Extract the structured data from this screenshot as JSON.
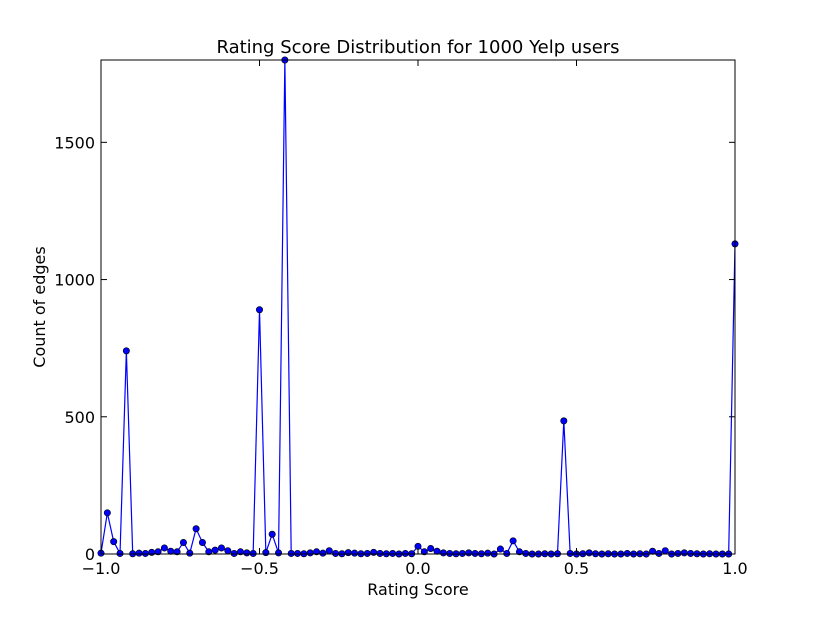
{
  "chart_data": {
    "type": "line",
    "title": "Rating Score Distribution for 1000 Yelp users",
    "xlabel": "Rating Score",
    "ylabel": "Count of edges",
    "xlim": [
      -1.0,
      1.0
    ],
    "ylim": [
      0,
      1800
    ],
    "xticks": [
      -1.0,
      -0.5,
      0.0,
      0.5,
      1.0
    ],
    "xtick_labels": [
      "−1.0",
      "−0.5",
      "0.0",
      "0.5",
      "1.0"
    ],
    "yticks": [
      0,
      500,
      1000,
      1500
    ],
    "ytick_labels": [
      "0",
      "500",
      "1000",
      "1500"
    ],
    "grid": false,
    "legend": null,
    "line_color": "#0000ff",
    "marker_fill": "#0000ff",
    "marker_edge": "#000000",
    "series": [
      {
        "x": [
          -1.0,
          -0.98,
          -0.96,
          -0.94,
          -0.92,
          -0.9,
          -0.88,
          -0.86,
          -0.84,
          -0.82,
          -0.8,
          -0.78,
          -0.76,
          -0.74,
          -0.72,
          -0.7,
          -0.68,
          -0.66,
          -0.64,
          -0.62,
          -0.6,
          -0.58,
          -0.56,
          -0.54,
          -0.52,
          -0.5,
          -0.48,
          -0.46,
          -0.44,
          -0.42,
          -0.4,
          -0.38,
          -0.36,
          -0.34,
          -0.32,
          -0.3,
          -0.28,
          -0.26,
          -0.24,
          -0.22,
          -0.2,
          -0.18,
          -0.16,
          -0.14,
          -0.12,
          -0.1,
          -0.08,
          -0.06,
          -0.04,
          -0.02,
          0.0,
          0.02,
          0.04,
          0.06,
          0.08,
          0.1,
          0.12,
          0.14,
          0.16,
          0.18,
          0.2,
          0.22,
          0.24,
          0.26,
          0.28,
          0.3,
          0.32,
          0.34,
          0.36,
          0.38,
          0.4,
          0.42,
          0.44,
          0.46,
          0.48,
          0.5,
          0.52,
          0.54,
          0.56,
          0.58,
          0.6,
          0.62,
          0.64,
          0.66,
          0.68,
          0.7,
          0.72,
          0.74,
          0.76,
          0.78,
          0.8,
          0.82,
          0.84,
          0.86,
          0.88,
          0.9,
          0.92,
          0.94,
          0.96,
          0.98,
          1.0
        ],
        "y": [
          3,
          150,
          45,
          2,
          740,
          1,
          3,
          2,
          6,
          8,
          22,
          10,
          8,
          42,
          3,
          92,
          42,
          8,
          14,
          22,
          12,
          2,
          8,
          4,
          2,
          890,
          5,
          72,
          4,
          1800,
          2,
          2,
          1,
          4,
          8,
          3,
          12,
          2,
          1,
          5,
          3,
          1,
          2,
          6,
          2,
          1,
          2,
          0,
          2,
          1,
          28,
          8,
          20,
          10,
          4,
          2,
          1,
          2,
          4,
          2,
          1,
          3,
          0,
          18,
          2,
          48,
          8,
          2,
          0,
          0,
          1,
          0,
          1,
          485,
          2,
          0,
          1,
          4,
          1,
          0,
          1,
          0,
          0,
          2,
          0,
          1,
          0,
          10,
          2,
          12,
          0,
          2,
          4,
          2,
          1,
          0,
          1,
          0,
          0,
          0,
          1130
        ]
      }
    ]
  }
}
